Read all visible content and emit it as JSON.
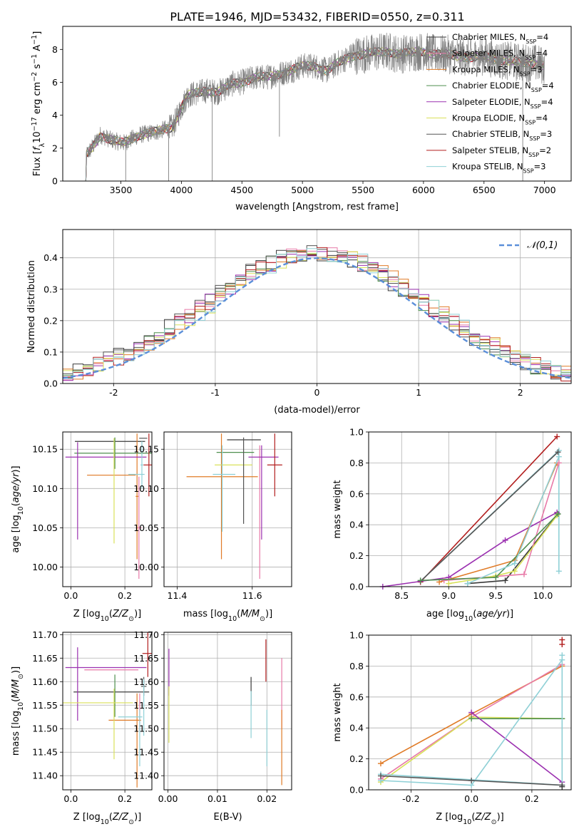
{
  "title": "PLATE=1946, MJD=53432, FIBERID=0550, z=0.311",
  "models": [
    {
      "name": "Chabrier MILES",
      "nssp": "4",
      "color": "#3b3b3b"
    },
    {
      "name": "Salpeter MILES",
      "nssp": "4",
      "color": "#e87aa8"
    },
    {
      "name": "Kroupa MILES",
      "nssp": "3",
      "color": "#e07b27"
    },
    {
      "name": "Chabrier ELODIE",
      "nssp": "4",
      "color": "#4f8f4f"
    },
    {
      "name": "Salpeter ELODIE",
      "nssp": "4",
      "color": "#9b30b0"
    },
    {
      "name": "Kroupa ELODIE",
      "nssp": "4",
      "color": "#d9e05a"
    },
    {
      "name": "Chabrier STELIB",
      "nssp": "3",
      "color": "#555555"
    },
    {
      "name": "Salpeter STELIB",
      "nssp": "2",
      "color": "#b21e1e"
    },
    {
      "name": "Kroupa STELIB",
      "nssp": "3",
      "color": "#8fd0d6"
    }
  ],
  "chart_data": [
    {
      "id": "spectrum",
      "type": "line",
      "xlabel": "wavelength [Angstrom, rest frame]",
      "ylabel_html": "Flux [f_λ10^-17 erg cm^-2 s^-1 A^-1]",
      "xlim": [
        3020,
        7220
      ],
      "ylim": [
        0,
        9.4
      ],
      "xticks": [
        3500,
        4000,
        4500,
        5000,
        5500,
        6000,
        6500,
        7000
      ],
      "yticks": [
        0,
        2,
        4,
        6,
        8
      ],
      "data_color": "#808080",
      "continuum": [
        [
          3205,
          0
        ],
        [
          3215,
          1.6
        ],
        [
          3260,
          2.0
        ],
        [
          3330,
          2.8
        ],
        [
          3420,
          2.5
        ],
        [
          3520,
          2.3
        ],
        [
          3650,
          2.8
        ],
        [
          3800,
          3.0
        ],
        [
          3880,
          3.2
        ],
        [
          3930,
          3.3
        ],
        [
          3990,
          4.3
        ],
        [
          4050,
          5.2
        ],
        [
          4200,
          5.5
        ],
        [
          4300,
          5.4
        ],
        [
          4420,
          5.9
        ],
        [
          4500,
          6.0
        ],
        [
          4600,
          6.3
        ],
        [
          4700,
          6.3
        ],
        [
          4800,
          6.5
        ],
        [
          4900,
          6.7
        ],
        [
          5000,
          7.0
        ],
        [
          5100,
          7.0
        ],
        [
          5200,
          6.7
        ],
        [
          5300,
          7.2
        ],
        [
          5400,
          7.6
        ],
        [
          5500,
          7.7
        ],
        [
          5600,
          7.8
        ],
        [
          5700,
          7.9
        ],
        [
          5800,
          7.7
        ],
        [
          5900,
          7.8
        ],
        [
          6000,
          7.9
        ],
        [
          6100,
          7.7
        ],
        [
          6200,
          7.7
        ],
        [
          6300,
          7.6
        ],
        [
          6400,
          7.5
        ],
        [
          6500,
          7.6
        ],
        [
          6600,
          7.4
        ],
        [
          6700,
          7.3
        ],
        [
          6800,
          7.2
        ],
        [
          6900,
          7.2
        ],
        [
          7000,
          7.0
        ]
      ],
      "data_dips": [
        [
          3540,
          0
        ],
        [
          3895,
          0
        ],
        [
          4255,
          0
        ],
        [
          4810,
          2.7
        ],
        [
          6820,
          0
        ]
      ]
    },
    {
      "id": "residuals",
      "type": "step",
      "xlabel": "(data-model)/error",
      "ylabel": "Normed distribution",
      "xlim": [
        -2.5,
        2.5
      ],
      "ylim": [
        0,
        0.49
      ],
      "xticks": [
        -2,
        -1,
        0,
        1,
        2
      ],
      "yticks": [
        0.0,
        0.1,
        0.2,
        0.3,
        0.4
      ],
      "gaussian_label": "𝒩(0,1)",
      "gaussian_color": "#5b8fd9",
      "bin_width": 0.1
    },
    {
      "id": "age-vs-Z",
      "type": "errorbar",
      "xlabel": "Z [log10(Z/Z⊙)]",
      "ylabel": "age  [log10(age/yr)]",
      "xlim": [
        -0.03,
        0.3
      ],
      "ylim": [
        9.975,
        10.172
      ],
      "xticks": [
        0.0,
        0.2
      ],
      "yticks": [
        10.0,
        10.05,
        10.1,
        10.15
      ],
      "points": [
        {
          "model": 0,
          "x": 0.145,
          "y": 10.16,
          "xerr": 0.13,
          "yerr": 0.0
        },
        {
          "model": 1,
          "x": 0.252,
          "y": 10.05,
          "xerr": 0.01,
          "yerr": 0.065
        },
        {
          "model": 2,
          "x": 0.15,
          "y": 10.117,
          "xerr": 0.09,
          "yerr": 0.0
        },
        {
          "model": 2,
          "x": 0.245,
          "y": 10.09,
          "xerr": 0.005,
          "yerr": 0.08
        },
        {
          "model": 3,
          "x": 0.163,
          "y": 10.145,
          "xerr": 0.15,
          "yerr": 0.02
        },
        {
          "model": 4,
          "x": 0.025,
          "y": 10.097,
          "xerr": 0.0,
          "yerr": 0.062
        },
        {
          "model": 4,
          "x": 0.13,
          "y": 10.14,
          "xerr": 0.15,
          "yerr": 0.0
        },
        {
          "model": 5,
          "x": 0.16,
          "y": 10.097,
          "xerr": 0.0,
          "yerr": 0.067
        },
        {
          "model": 6,
          "x": 0.268,
          "y": 10.164,
          "xerr": 0.015,
          "yerr": 0.0
        },
        {
          "model": 7,
          "x": 0.289,
          "y": 10.13,
          "xerr": 0.02,
          "yerr": 0.04
        },
        {
          "model": 8,
          "x": 0.263,
          "y": 10.13,
          "xerr": 0.005,
          "yerr": 0.03
        },
        {
          "model": 8,
          "x": 0.243,
          "y": 10.118,
          "xerr": 0.03,
          "yerr": 0.0
        }
      ]
    },
    {
      "id": "age-vs-mass",
      "type": "errorbar",
      "xlabel": "mass [log10(M/M⊙)]",
      "xlim": [
        11.365,
        11.705
      ],
      "ylim": [
        9.975,
        10.172
      ],
      "xticks": [
        11.4,
        11.6
      ],
      "yticks": [
        10.0,
        10.05,
        10.1,
        10.15
      ],
      "points": [
        {
          "model": 0,
          "x": 11.578,
          "y": 10.162,
          "xerr": 0.045,
          "yerr": 0.0
        },
        {
          "model": 1,
          "x": 11.62,
          "y": 10.07,
          "xerr": 0.0,
          "yerr": 0.085
        },
        {
          "model": 2,
          "x": 11.52,
          "y": 10.115,
          "xerr": 0.095,
          "yerr": 0.0
        },
        {
          "model": 2,
          "x": 11.518,
          "y": 10.09,
          "xerr": 0.0,
          "yerr": 0.08
        },
        {
          "model": 3,
          "x": 11.555,
          "y": 10.146,
          "xerr": 0.05,
          "yerr": 0.0
        },
        {
          "model": 4,
          "x": 11.63,
          "y": 10.14,
          "xerr": 0.04,
          "yerr": 0.0
        },
        {
          "model": 4,
          "x": 11.625,
          "y": 10.095,
          "xerr": 0.0,
          "yerr": 0.06
        },
        {
          "model": 5,
          "x": 11.55,
          "y": 10.13,
          "xerr": 0.05,
          "yerr": 0.0
        },
        {
          "model": 6,
          "x": 11.577,
          "y": 10.11,
          "xerr": 0.0,
          "yerr": 0.055
        },
        {
          "model": 7,
          "x": 11.66,
          "y": 10.13,
          "xerr": 0.02,
          "yerr": 0.04
        },
        {
          "model": 8,
          "x": 11.525,
          "y": 10.118,
          "xerr": 0.03,
          "yerr": 0.0
        },
        {
          "model": 8,
          "x": 11.52,
          "y": 10.1,
          "xerr": 0.0,
          "yerr": 0.055
        }
      ]
    },
    {
      "id": "weight-vs-age",
      "type": "line",
      "xlabel": "age  [log10(age/yr)]",
      "ylabel": "mass weight",
      "xlim": [
        8.15,
        10.3
      ],
      "ylim": [
        0,
        1.0
      ],
      "xticks": [
        8.5,
        9.0,
        9.5,
        10.0
      ],
      "yticks": [
        0.0,
        0.2,
        0.4,
        0.6,
        0.8,
        1.0
      ],
      "series": [
        {
          "model": 7,
          "x": [
            8.7,
            10.15
          ],
          "y": [
            0.03,
            0.97
          ]
        },
        {
          "model": 8,
          "x": [
            8.7,
            10.17,
            10.17
          ],
          "y": [
            0.035,
            0.88,
            0.1
          ]
        },
        {
          "model": 6,
          "x": [
            8.7,
            10.16
          ],
          "y": [
            0.035,
            0.87
          ]
        },
        {
          "model": 4,
          "x": [
            8.3,
            9.0,
            9.6,
            10.15
          ],
          "y": [
            0.0,
            0.06,
            0.3,
            0.48
          ]
        },
        {
          "model": 0,
          "x": [
            9.2,
            9.6,
            10.16
          ],
          "y": [
            0.02,
            0.04,
            0.47
          ]
        },
        {
          "model": 2,
          "x": [
            8.9,
            9.7,
            10.15
          ],
          "y": [
            0.03,
            0.17,
            0.8
          ]
        },
        {
          "model": 1,
          "x": [
            8.95,
            9.8,
            10.17
          ],
          "y": [
            0.04,
            0.08,
            0.8
          ]
        },
        {
          "model": 5,
          "x": [
            9.0,
            9.5,
            9.7,
            10.15
          ],
          "y": [
            0.02,
            0.07,
            0.1,
            0.46
          ]
        },
        {
          "model": 3,
          "x": [
            8.7,
            9.5,
            10.16
          ],
          "y": [
            0.04,
            0.06,
            0.47
          ]
        },
        {
          "model": 8,
          "x": [
            9.2,
            9.7,
            10.17
          ],
          "y": [
            0.02,
            0.15,
            0.84
          ]
        }
      ]
    },
    {
      "id": "mass-vs-Z",
      "type": "errorbar",
      "xlabel": "Z [log10(Z/Z⊙)]",
      "ylabel": "mass [log10(M/M⊙)]",
      "xlim": [
        -0.03,
        0.3
      ],
      "ylim": [
        11.37,
        11.705
      ],
      "xticks": [
        0.0,
        0.2
      ],
      "yticks": [
        11.4,
        11.45,
        11.5,
        11.55,
        11.6,
        11.65,
        11.7
      ],
      "points": [
        {
          "model": 0,
          "x": 0.15,
          "y": 11.578,
          "xerr": 0.14,
          "yerr": 0.0
        },
        {
          "model": 1,
          "x": 0.15,
          "y": 11.625,
          "xerr": 0.1,
          "yerr": 0.0
        },
        {
          "model": 1,
          "x": 0.255,
          "y": 11.535,
          "xerr": 0.0,
          "yerr": 0.04
        },
        {
          "model": 2,
          "x": 0.2,
          "y": 11.518,
          "xerr": 0.06,
          "yerr": 0.0
        },
        {
          "model": 2,
          "x": 0.245,
          "y": 11.475,
          "xerr": 0.0,
          "yerr": 0.1
        },
        {
          "model": 3,
          "x": 0.163,
          "y": 11.57,
          "xerr": 0.0,
          "yerr": 0.045
        },
        {
          "model": 4,
          "x": 0.025,
          "y": 11.595,
          "xerr": 0.0,
          "yerr": 0.078
        },
        {
          "model": 4,
          "x": 0.13,
          "y": 11.63,
          "xerr": 0.15,
          "yerr": 0.0
        },
        {
          "model": 5,
          "x": 0.16,
          "y": 11.51,
          "xerr": 0.0,
          "yerr": 0.075
        },
        {
          "model": 5,
          "x": 0.1,
          "y": 11.555,
          "xerr": 0.13,
          "yerr": 0.0
        },
        {
          "model": 6,
          "x": 0.27,
          "y": 11.59,
          "xerr": 0.01,
          "yerr": 0.02
        },
        {
          "model": 7,
          "x": 0.285,
          "y": 11.66,
          "xerr": 0.02,
          "yerr": 0.05
        },
        {
          "model": 8,
          "x": 0.255,
          "y": 11.48,
          "xerr": 0.0,
          "yerr": 0.06
        },
        {
          "model": 8,
          "x": 0.27,
          "y": 11.545,
          "xerr": 0.0,
          "yerr": 0.06
        },
        {
          "model": 8,
          "x": 0.22,
          "y": 11.525,
          "xerr": 0.045,
          "yerr": 0.0
        }
      ]
    },
    {
      "id": "mass-vs-EBV",
      "type": "errorbar",
      "xlabel": "E(B-V)",
      "xlim": [
        -0.0008,
        0.025
      ],
      "ylim": [
        11.37,
        11.705
      ],
      "xticks": [
        0.0,
        0.01,
        0.02
      ],
      "yticks": [
        11.4,
        11.45,
        11.5,
        11.55,
        11.6,
        11.65,
        11.7
      ],
      "points": [
        {
          "model": 4,
          "x": 0.0002,
          "y": 11.62,
          "xerr": 0.0,
          "yerr": 0.05
        },
        {
          "model": 5,
          "x": 0.0002,
          "y": 11.53,
          "xerr": 0.0,
          "yerr": 0.06
        },
        {
          "model": 0,
          "x": 0.0168,
          "y": 11.58,
          "xerr": 0.0,
          "yerr": 0.03
        },
        {
          "model": 8,
          "x": 0.0168,
          "y": 11.53,
          "xerr": 0.0,
          "yerr": 0.05
        },
        {
          "model": 8,
          "x": 0.02,
          "y": 11.48,
          "xerr": 0.0,
          "yerr": 0.06
        },
        {
          "model": 7,
          "x": 0.0198,
          "y": 11.645,
          "xerr": 0.0,
          "yerr": 0.045
        },
        {
          "model": 1,
          "x": 0.023,
          "y": 11.575,
          "xerr": 0.0,
          "yerr": 0.075
        },
        {
          "model": 2,
          "x": 0.023,
          "y": 11.46,
          "xerr": 0.0,
          "yerr": 0.08
        }
      ]
    },
    {
      "id": "weight-vs-Z",
      "type": "line",
      "xlabel": "Z [log10(Z/Z⊙)]",
      "ylabel": "mass weight",
      "xlim": [
        -0.34,
        0.33
      ],
      "ylim": [
        0,
        1.0
      ],
      "xticks": [
        -0.2,
        0.0,
        0.2
      ],
      "yticks": [
        0.0,
        0.2,
        0.4,
        0.6,
        0.8,
        1.0
      ],
      "series": [
        {
          "model": 2,
          "x": [
            -0.3,
            0.0,
            0.3
          ],
          "y": [
            0.17,
            0.49,
            0.8
          ]
        },
        {
          "model": 1,
          "x": [
            -0.3,
            0.0,
            0.3
          ],
          "y": [
            0.07,
            0.47,
            0.81
          ]
        },
        {
          "model": 5,
          "x": [
            -0.3,
            0.0,
            0.3
          ],
          "y": [
            0.05,
            0.47,
            0.46
          ]
        },
        {
          "model": 3,
          "x": [
            0.0,
            0.3
          ],
          "y": [
            0.46,
            0.46
          ]
        },
        {
          "model": 4,
          "x": [
            0.0,
            0.3
          ],
          "y": [
            0.5,
            0.05
          ]
        },
        {
          "model": 8,
          "x": [
            -0.3,
            0.0,
            0.3
          ],
          "y": [
            0.06,
            0.03,
            0.84
          ]
        },
        {
          "model": 8,
          "x": [
            -0.3,
            0.3,
            0.3
          ],
          "y": [
            0.1,
            0.03,
            0.87
          ]
        },
        {
          "model": 6,
          "x": [
            -0.3,
            0.0,
            0.3
          ],
          "y": [
            0.09,
            0.06,
            0.03
          ]
        },
        {
          "model": 7,
          "x": [
            0.3,
            0.3
          ],
          "y": [
            0.94,
            0.97
          ]
        },
        {
          "model": 0,
          "x": [
            0.3
          ],
          "y": [
            0.02
          ]
        }
      ]
    }
  ]
}
